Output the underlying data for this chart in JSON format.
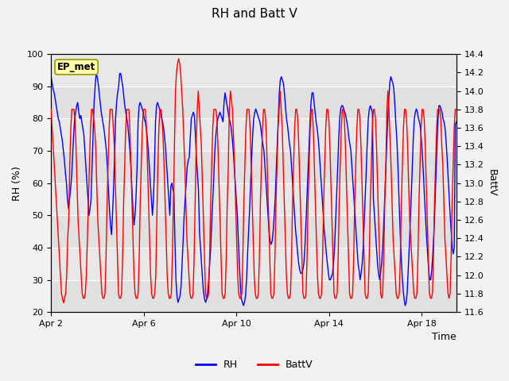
{
  "title": "RH and Batt V",
  "xlabel": "Time",
  "ylabel_left": "RH (%)",
  "ylabel_right": "BattV",
  "ylim_left": [
    20,
    100
  ],
  "ylim_right": [
    11.6,
    14.4
  ],
  "xtick_labels": [
    "Apr 2",
    "Apr 6",
    "Apr 10",
    "Apr 14",
    "Apr 18"
  ],
  "xtick_pos": [
    0,
    4,
    8,
    12,
    16
  ],
  "annotation": "EP_met",
  "legend_labels": [
    "RH",
    "BattV"
  ],
  "line_colors": [
    "blue",
    "red"
  ],
  "plot_bg_color": "#e8e8e8",
  "fig_bg": "#f2f2f2",
  "total_days": 17.5,
  "rh_cycles": [
    [
      93,
      91,
      89,
      88,
      86,
      84,
      82,
      80,
      79,
      77,
      75,
      73,
      70,
      67,
      63,
      60,
      55,
      52,
      55,
      58,
      62,
      68,
      75,
      80,
      82,
      84,
      85,
      82,
      80
    ],
    [
      81,
      79,
      77,
      75,
      70,
      65,
      60,
      55,
      50,
      52,
      55,
      65,
      75,
      85,
      90,
      94,
      93,
      91,
      88,
      85,
      82,
      80,
      78,
      76,
      73,
      70,
      65,
      58,
      52,
      47,
      44,
      50,
      58,
      68,
      80,
      85,
      88,
      90,
      94,
      94,
      92,
      90,
      87,
      84,
      82,
      80,
      78,
      74,
      70,
      65,
      58,
      52,
      47,
      50,
      56,
      65,
      79,
      84,
      85,
      84,
      83
    ],
    [
      82,
      80,
      79,
      77,
      74,
      70,
      65,
      60,
      55,
      50,
      55,
      65,
      79,
      84,
      85,
      84,
      83,
      82,
      80,
      79,
      77,
      74,
      70,
      65,
      60,
      55,
      50
    ],
    [
      59,
      60,
      58,
      57,
      42,
      30,
      25,
      23,
      24,
      25,
      28,
      35,
      42,
      50,
      55,
      60,
      65,
      67,
      68,
      74,
      80,
      81,
      82,
      81,
      75,
      68,
      63,
      58,
      45,
      40,
      35,
      30,
      26,
      24,
      23,
      24,
      26,
      30,
      35,
      40,
      48,
      55,
      62,
      70,
      75,
      78,
      80,
      81,
      82,
      81,
      80,
      79,
      85,
      88,
      86,
      84,
      82,
      80
    ],
    [
      79,
      77,
      74,
      70,
      65,
      60,
      55,
      50,
      42,
      35,
      28,
      24,
      23,
      22,
      23,
      25,
      30,
      38,
      45,
      52,
      60,
      68,
      75,
      80,
      82,
      83,
      82,
      81,
      80,
      79,
      77,
      74,
      72,
      70,
      65,
      60,
      55,
      50,
      45,
      42
    ],
    [
      41,
      42,
      45,
      50,
      55,
      64,
      72,
      80,
      88,
      92,
      93,
      92,
      91,
      88,
      84,
      80,
      78,
      75,
      72,
      70,
      65,
      60,
      55,
      50,
      45,
      42,
      38,
      35,
      33,
      32,
      32,
      33,
      35,
      40,
      47,
      55,
      63,
      71,
      79,
      85,
      88,
      88,
      85,
      82,
      79,
      77,
      74,
      70,
      65,
      60,
      55,
      50,
      45,
      42,
      38,
      35,
      32,
      30,
      30,
      31
    ],
    [
      32,
      35,
      40,
      48,
      56,
      64,
      73,
      80,
      83,
      84,
      84,
      83,
      82,
      81,
      79,
      77,
      74,
      72,
      70,
      65,
      60,
      55,
      50,
      45,
      40,
      35,
      33,
      30,
      32,
      35,
      40,
      48,
      56,
      64,
      73,
      80,
      83,
      84,
      83,
      82,
      55,
      50,
      45,
      40,
      35,
      32,
      30,
      32,
      35,
      40,
      47,
      55,
      63,
      72,
      79,
      86,
      91,
      93,
      92,
      91
    ],
    [
      89,
      84,
      78,
      73,
      65,
      55,
      46,
      38,
      32,
      27,
      24,
      22,
      23,
      26,
      33,
      40,
      48,
      56,
      65,
      74,
      80,
      82,
      83,
      82,
      80,
      79,
      77,
      73,
      68,
      62,
      55,
      49,
      43,
      38,
      33,
      30,
      30,
      33,
      38,
      44,
      52,
      61,
      70,
      79,
      84,
      84,
      83,
      82,
      80,
      79,
      77,
      73,
      68,
      62,
      56,
      50,
      45,
      40,
      38,
      40,
      78,
      79
    ]
  ],
  "bv_cycles": [
    [
      13.8,
      13.6,
      13.4,
      13.2,
      13.0,
      12.8,
      12.6,
      12.4,
      12.2,
      12.0,
      11.8,
      11.75,
      11.7,
      11.75,
      11.8,
      12.0,
      12.4,
      12.6,
      13.2,
      13.6,
      13.8,
      13.8,
      13.8,
      13.7,
      13.4,
      13.0,
      12.6,
      12.4,
      12.2,
      12.0,
      11.8,
      11.75,
      11.75,
      11.8,
      12.0,
      12.4,
      12.8,
      13.2,
      13.6,
      13.8,
      13.8,
      13.7,
      13.6,
      13.4,
      13.0,
      12.6,
      12.4,
      12.2,
      12.0,
      11.8,
      11.75,
      11.75,
      11.8,
      12.2,
      12.8,
      13.2,
      13.6,
      13.8,
      13.8,
      13.8,
      13.6,
      13.4,
      13.0,
      12.6,
      12.2,
      11.8,
      11.75,
      11.75,
      11.8,
      12.2,
      12.8,
      13.2,
      13.6,
      13.8,
      13.8,
      13.8,
      13.6,
      13.2,
      12.8,
      12.4,
      12.0,
      11.8,
      11.75,
      11.75,
      11.8,
      12.2,
      12.8,
      13.2,
      13.6,
      13.8,
      13.8,
      13.8,
      13.6,
      13.2,
      12.8,
      12.4,
      12.0,
      11.8,
      11.75,
      11.75,
      11.8,
      12.0,
      12.6,
      13.2,
      13.6,
      13.8,
      13.8,
      13.7,
      13.5,
      13.2,
      12.8,
      12.4,
      12.0,
      11.8,
      11.75,
      11.75,
      11.8,
      12.2,
      12.8,
      13.4,
      14.0,
      14.2,
      14.3,
      14.35,
      14.3,
      14.2,
      14.0,
      13.8,
      13.5,
      13.2,
      12.8,
      12.4,
      12.2,
      12.0,
      11.8,
      11.75,
      11.75,
      11.8,
      12.2,
      12.8,
      13.4,
      13.8,
      14.0,
      13.8,
      13.6,
      13.4,
      13.0,
      12.6,
      12.2,
      11.8,
      11.75,
      11.75,
      11.8,
      12.2,
      12.8,
      13.2,
      13.6,
      13.8,
      13.8,
      13.8,
      13.7,
      13.4,
      13.0,
      12.6,
      12.2,
      11.8,
      11.75,
      11.75,
      11.8,
      12.2,
      12.8,
      13.2,
      13.8,
      14.0,
      13.9,
      13.8,
      13.5,
      13.2,
      12.8,
      12.4,
      12.0,
      11.8,
      11.75,
      11.75,
      11.8,
      12.2,
      12.8,
      13.2,
      13.6,
      13.8,
      13.8,
      13.8,
      13.6,
      13.2,
      12.8,
      12.4,
      12.0,
      11.8,
      11.75,
      11.75,
      11.8,
      12.2,
      12.8,
      13.2,
      13.6,
      13.8,
      13.8,
      13.7,
      13.4,
      13.0,
      12.6,
      12.2,
      11.8,
      11.75,
      11.75,
      11.8,
      12.2,
      12.8,
      13.2,
      13.6,
      13.8,
      14.0,
      13.8,
      13.6,
      13.2,
      12.8,
      12.4,
      12.0,
      11.8,
      11.75,
      11.75,
      11.8,
      12.2,
      12.8,
      13.2,
      13.6,
      13.8,
      13.8,
      13.7,
      13.4,
      13.0,
      12.6,
      12.2,
      11.8,
      11.75,
      11.75,
      11.8,
      12.2,
      12.8,
      13.2,
      13.6,
      13.8,
      13.8,
      13.6,
      13.2,
      12.8,
      12.4,
      12.0,
      11.8,
      11.75,
      11.75,
      11.8,
      12.2,
      12.8,
      13.2,
      13.6,
      13.8,
      13.8,
      13.7,
      13.4,
      13.0,
      12.6,
      12.2,
      11.8,
      11.75,
      11.75,
      11.8,
      12.2,
      12.8,
      13.2,
      13.6,
      13.8,
      13.8,
      13.7,
      13.4,
      13.0,
      12.6,
      12.2,
      11.8,
      11.75,
      11.75,
      11.8,
      12.2,
      12.8,
      13.2,
      13.6,
      13.8,
      13.8,
      13.7,
      13.4,
      13.0,
      12.6,
      12.2,
      11.8,
      11.75,
      11.75,
      11.8,
      12.2,
      12.8,
      13.2,
      13.6,
      13.8,
      13.8,
      13.7,
      13.4,
      13.0,
      12.6,
      12.2,
      11.8,
      11.75,
      11.8,
      12.2,
      12.8,
      13.2,
      13.8,
      14.0,
      13.8,
      13.5,
      13.2,
      12.8,
      12.4,
      12.2,
      12.0,
      11.8,
      11.75,
      11.75,
      11.8,
      12.2,
      12.8,
      13.2,
      13.6,
      13.8,
      13.8,
      13.7,
      13.4,
      13.0,
      12.6,
      12.4,
      12.2,
      12.0,
      11.8,
      11.75,
      11.75,
      11.8,
      12.2,
      12.8,
      13.2,
      13.6,
      13.8,
      13.8,
      13.7,
      13.4,
      13.0,
      12.6,
      12.2,
      11.8,
      11.75,
      11.75,
      11.8,
      12.2,
      12.8,
      13.2,
      13.6,
      13.8,
      13.8,
      13.8,
      13.7,
      13.4,
      13.2,
      12.8,
      12.4,
      12.2,
      12.0,
      11.8,
      11.75,
      11.8,
      12.2,
      12.8,
      13.2,
      13.6,
      13.8,
      13.8
    ]
  ]
}
